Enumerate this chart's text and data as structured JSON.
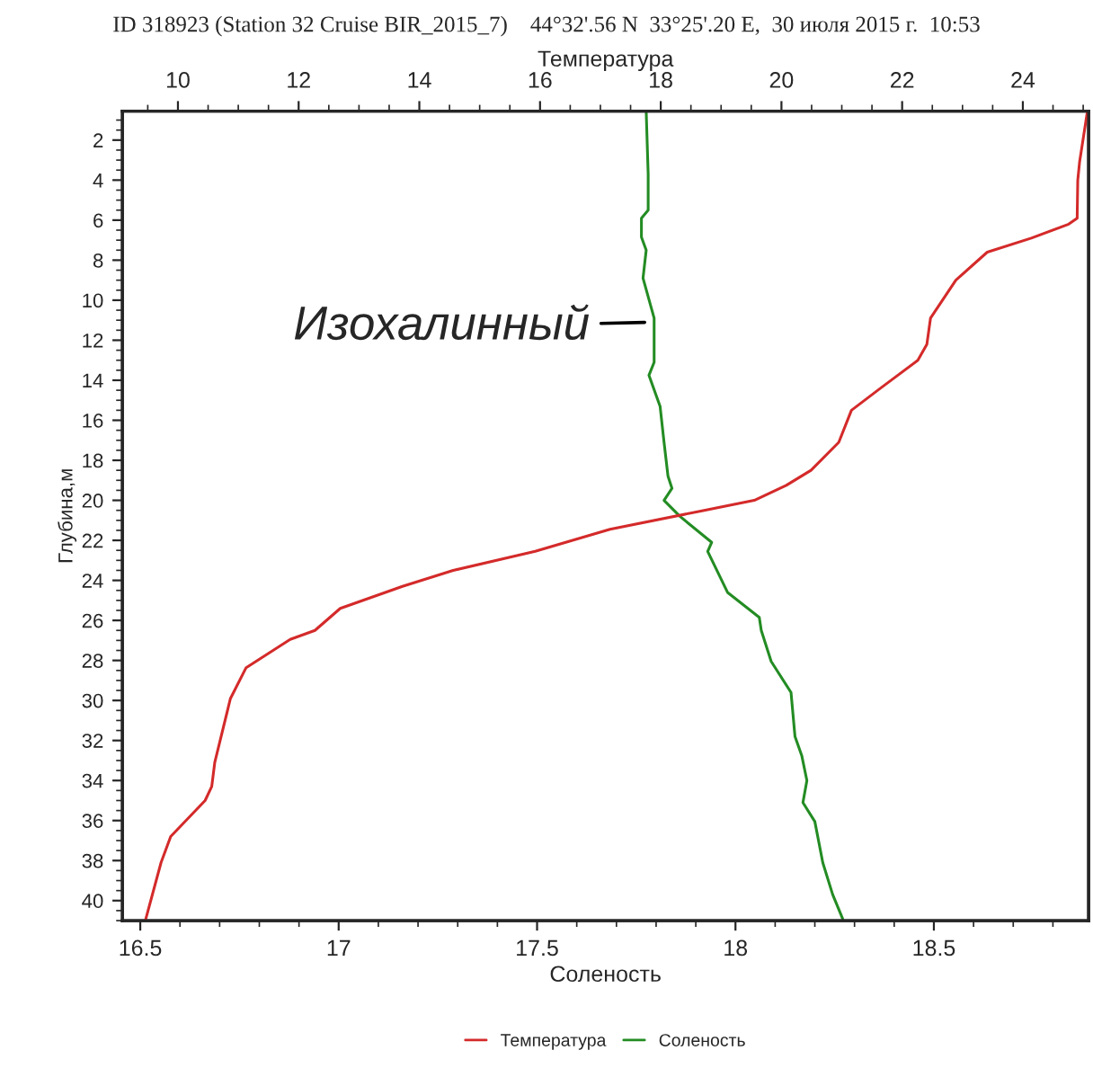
{
  "chart_data": {
    "type": "line",
    "title": "ID 318923 (Station 32 Cruise BIR_2015_7)    44°32'.56 N  33°25'.20 E,  30 июля 2015 г.  10:53",
    "xlabel": "Соленость",
    "x2label": "Температура",
    "ylabel": "Глубина,м",
    "xlim": [
      16.455,
      18.89
    ],
    "xticks": [
      16.5,
      17,
      17.5,
      18,
      18.5
    ],
    "x2lim": [
      9.08,
      25.09
    ],
    "x2ticks": [
      10,
      12,
      14,
      16,
      18,
      20,
      22,
      24
    ],
    "ylim": [
      41,
      0.55
    ],
    "yticks": [
      2,
      4,
      6,
      8,
      10,
      12,
      14,
      16,
      18,
      20,
      22,
      24,
      26,
      28,
      30,
      32,
      34,
      36,
      38,
      40
    ],
    "legend": "bottom",
    "grid": false,
    "annotations": [
      {
        "text": "Изохалинный",
        "x": 17.79,
        "y": 11.1
      }
    ],
    "series": [
      {
        "name": "Температура",
        "color": "#d42a2a",
        "axis": "x2",
        "x": [
          25.07,
          24.94,
          24.91,
          24.9,
          24.76,
          24.14,
          23.41,
          22.89,
          22.47,
          22.41,
          22.26,
          21.64,
          21.16,
          20.95,
          20.49,
          20.08,
          19.55,
          18.72,
          17.16,
          15.92,
          14.56,
          13.72,
          12.69,
          12.27,
          11.86,
          11.13,
          10.87,
          10.61,
          10.56,
          10.45,
          9.88,
          9.72,
          9.46
        ],
        "values": [
          0.56,
          3.1,
          4.0,
          5.9,
          6.2,
          6.9,
          7.6,
          9.0,
          10.9,
          12.2,
          13.0,
          14.4,
          15.5,
          17.1,
          18.5,
          19.25,
          20.0,
          20.5,
          21.45,
          22.55,
          23.5,
          24.3,
          25.4,
          26.5,
          26.95,
          28.36,
          29.9,
          33.1,
          34.3,
          35.0,
          36.8,
          38.1,
          41.0
        ]
      },
      {
        "name": "Соленость",
        "color": "#238c23",
        "x": [
          17.775,
          17.78,
          17.78,
          17.763,
          17.763,
          17.775,
          17.767,
          17.795,
          17.795,
          17.782,
          17.81,
          17.82,
          17.83,
          17.84,
          17.82,
          17.86,
          17.94,
          17.93,
          17.98,
          18.06,
          18.065,
          18.09,
          18.14,
          18.15,
          18.167,
          18.18,
          18.17,
          18.2,
          18.22,
          18.245,
          18.27
        ],
        "values": [
          0.56,
          3.7,
          5.5,
          5.9,
          6.85,
          7.5,
          8.9,
          10.9,
          13.1,
          13.75,
          15.3,
          17.1,
          18.8,
          19.4,
          20.0,
          20.8,
          22.1,
          22.55,
          24.6,
          25.85,
          26.5,
          28.05,
          29.6,
          31.8,
          32.75,
          34.0,
          35.1,
          36.05,
          38.1,
          39.7,
          40.9
        ]
      }
    ]
  }
}
